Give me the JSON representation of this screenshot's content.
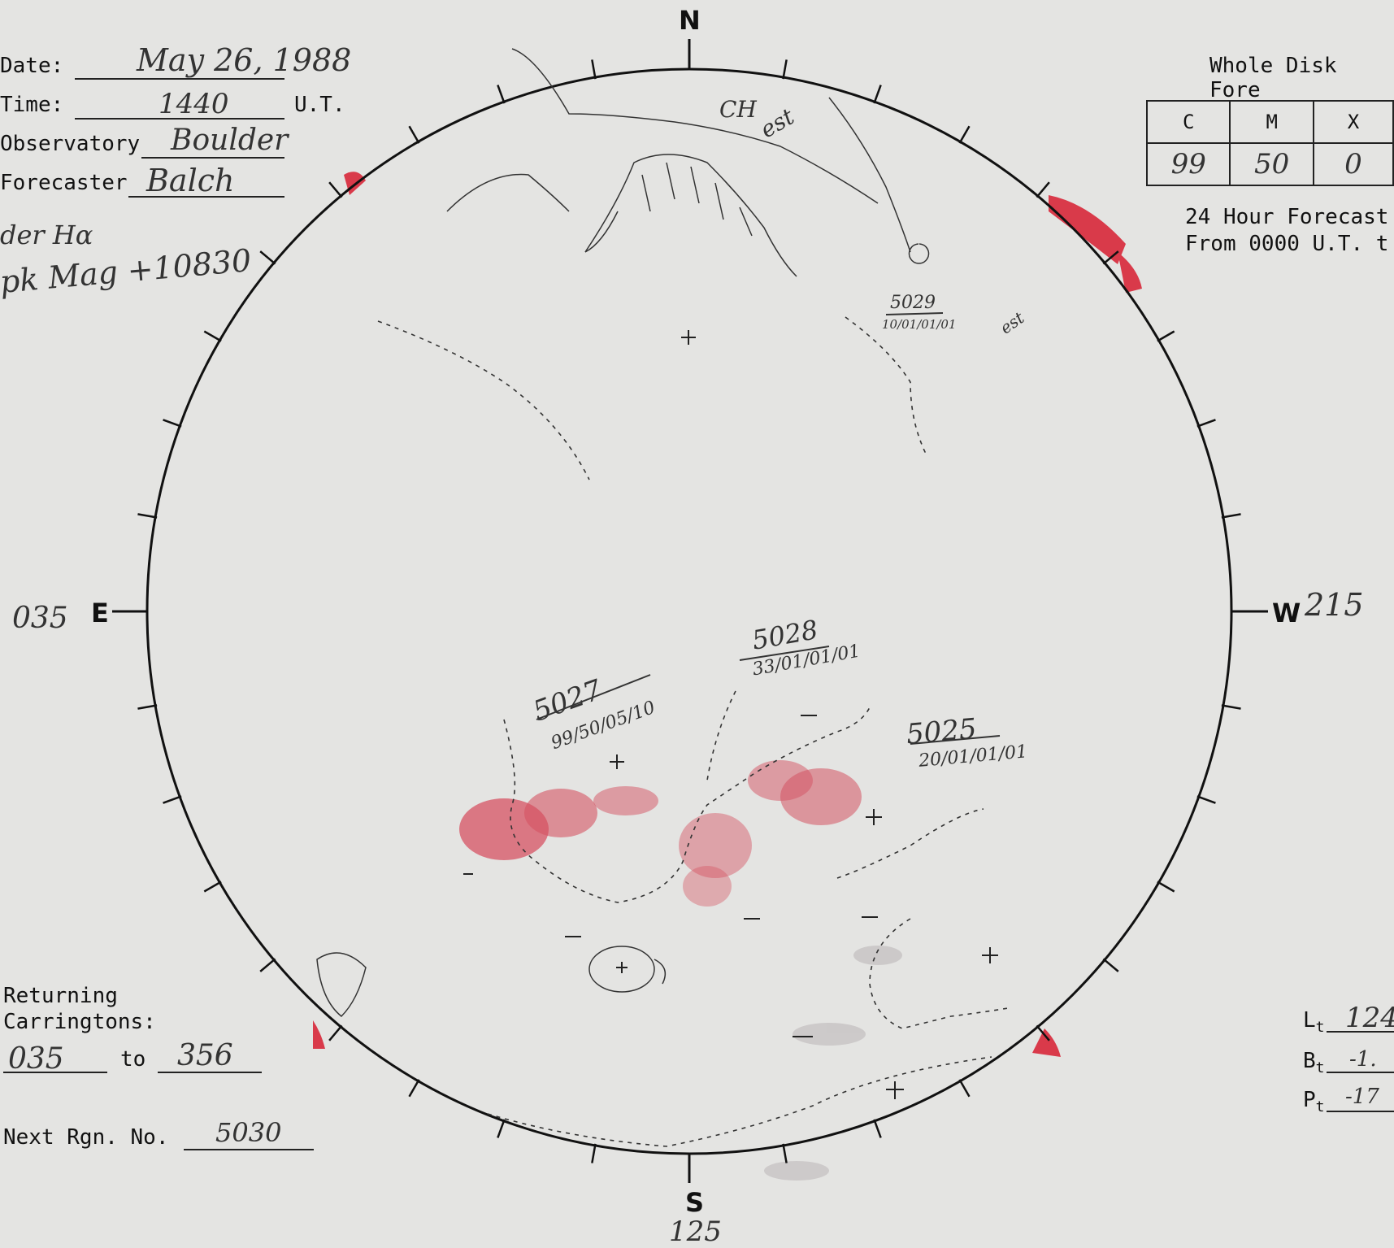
{
  "header": {
    "date_label": "Date:",
    "date_value": "May 26, 1988",
    "time_label": "Time:",
    "time_value": "1440",
    "time_unit": "U.T.",
    "observatory_label": "Observatory",
    "observatory_value": "Boulder",
    "forecaster_label": "Forecaster",
    "forecaster_value": "Balch",
    "note_line1": "der Hα",
    "note_line2": "pk Mag +10830"
  },
  "forecast": {
    "title": "Whole Disk Fore",
    "columns": [
      "C",
      "M",
      "X"
    ],
    "values": [
      "99",
      "50",
      "0"
    ],
    "caption_line1": "24 Hour Forecast",
    "caption_line2": "From 0000 U.T. t"
  },
  "compass": {
    "north": "N",
    "south": "S",
    "east": "E",
    "west": "W",
    "east_longitude": "035",
    "west_longitude": "215",
    "south_longitude": "125"
  },
  "regions": [
    {
      "number": "5029",
      "code": "10/01/01/01"
    },
    {
      "number": "5028",
      "code": "33/01/01/01"
    },
    {
      "number": "5027",
      "code": "99/50/05/10"
    },
    {
      "number": "5025",
      "code": "20/01/01/01"
    }
  ],
  "disk_annotations": {
    "coronal_hole_label": "CH",
    "est_label": "est",
    "est_label_2": "est"
  },
  "returning": {
    "label_line1": "Returning",
    "label_line2": "Carringtons:",
    "from": "035",
    "to_label": "to",
    "to": "356"
  },
  "next_region": {
    "label": "Next Rgn. No.",
    "value": "5030"
  },
  "orientation": {
    "l_label": "L",
    "l_sub": "t",
    "l_value": "124",
    "b_label": "B",
    "b_sub": "t",
    "b_value": "-1.",
    "p_label": "P",
    "p_sub": "t",
    "p_value": "-17"
  }
}
